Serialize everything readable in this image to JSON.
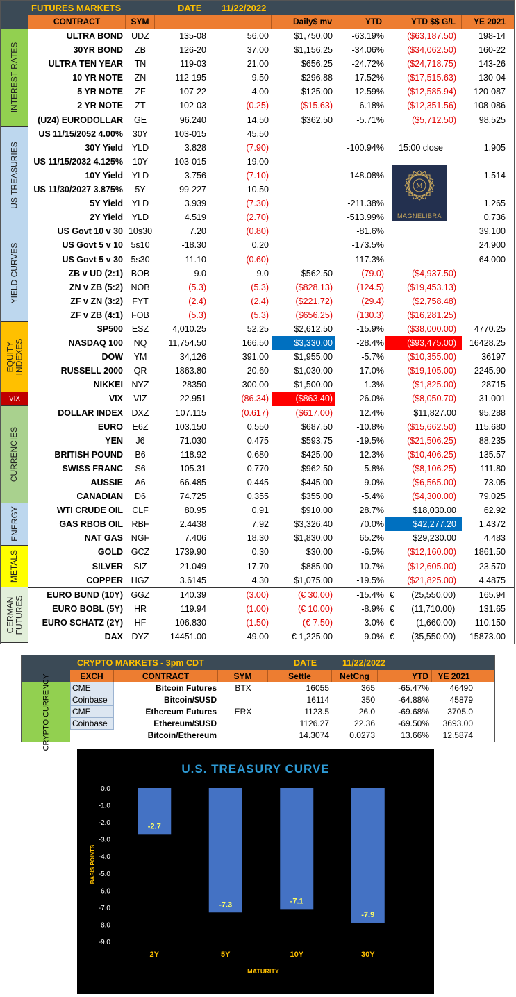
{
  "futures": {
    "title": "FUTURES MARKETS",
    "date_label": "DATE",
    "date": "11/22/2022",
    "columns": [
      "CONTRACT",
      "SYM",
      "",
      "",
      "Daily$ mv",
      "YTD",
      "YTD $$ G/L",
      "YE 2021"
    ],
    "sections": [
      {
        "label": "INTEREST RATES",
        "color": "#92d050",
        "rows": 7
      },
      {
        "label": "US TREASURIES",
        "color": "#bdd7ee",
        "rows": 7
      },
      {
        "label": "YIELD CURVES",
        "color": "#bdd7ee",
        "rows": 7
      },
      {
        "label": "EQUITY INDEXES",
        "color": "#ffc000",
        "rows": 5
      },
      {
        "label": "VIX",
        "color": "#c00000",
        "rows": 1
      },
      {
        "label": "CURRENCIES",
        "color": "#a9d18e",
        "rows": 7
      },
      {
        "label": "ENERGY",
        "color": "#bdd7ee",
        "rows": 3
      },
      {
        "label": "METALS",
        "color": "#ffff00",
        "rows": 3
      },
      {
        "label": "GERMAN FUTURES",
        "color": "#e2efda",
        "rows": 4
      }
    ],
    "rows": [
      {
        "contract": "ULTRA BOND",
        "sym": "UDZ",
        "price": "135-08",
        "net": "56.00",
        "mv": "$1,750.00",
        "ytd": "-63.19%",
        "ytdgl": "($63,187.50)",
        "ye": "198-14"
      },
      {
        "contract": "30YR BOND",
        "sym": "ZB",
        "price": "126-20",
        "net": "37.00",
        "mv": "$1,156.25",
        "ytd": "-34.06%",
        "ytdgl": "($34,062.50)",
        "ye": "160-22"
      },
      {
        "contract": "ULTRA TEN YEAR",
        "sym": "TN",
        "price": "119-03",
        "net": "21.00",
        "mv": "$656.25",
        "ytd": "-24.72%",
        "ytdgl": "($24,718.75)",
        "ye": "143-26"
      },
      {
        "contract": "10 YR NOTE",
        "sym": "ZN",
        "price": "112-195",
        "net": "9.50",
        "mv": "$296.88",
        "ytd": "-17.52%",
        "ytdgl": "($17,515.63)",
        "ye": "130-04"
      },
      {
        "contract": "5 YR NOTE",
        "sym": "ZF",
        "price": "107-22",
        "net": "4.00",
        "mv": "$125.00",
        "ytd": "-12.59%",
        "ytdgl": "($12,585.94)",
        "ye": "120-087"
      },
      {
        "contract": "2 YR NOTE",
        "sym": "ZT",
        "price": "102-03",
        "net": "(0.25)",
        "mv": "($15.63)",
        "ytd": "-6.18%",
        "ytdgl": "($12,351.56)",
        "ye": "108-086"
      },
      {
        "contract": "(U24) EURODOLLAR",
        "sym": "GE",
        "price": "96.240",
        "net": "14.50",
        "mv": "$362.50",
        "ytd": "-5.71%",
        "ytdgl": "($5,712.50)",
        "ye": "98.525"
      },
      {
        "contract": "US 11/15/2052 4.00%",
        "sym": "30Y",
        "price": "103-015",
        "net": "45.50",
        "mv": "",
        "ytd": "",
        "ytdgl": "",
        "ye": ""
      },
      {
        "contract": "30Y Yield",
        "sym": "YLD",
        "price": "3.828",
        "net": "(7.90)",
        "mv": "",
        "ytd": "-100.94%",
        "ytdgl": "15:00 close",
        "ye": "1.905"
      },
      {
        "contract": "US 11/15/2032 4.125%",
        "sym": "10Y",
        "price": "103-015",
        "net": "19.00",
        "mv": "",
        "ytd": "",
        "ytdgl": "",
        "ye": ""
      },
      {
        "contract": "10Y Yield",
        "sym": "YLD",
        "price": "3.756",
        "net": "(7.10)",
        "mv": "",
        "ytd": "-148.08%",
        "ytdgl": "",
        "ye": "1.514"
      },
      {
        "contract": "US 11/30/2027 3.875%",
        "sym": "5Y",
        "price": "99-227",
        "net": "10.50",
        "mv": "",
        "ytd": "",
        "ytdgl": "",
        "ye": ""
      },
      {
        "contract": "5Y Yield",
        "sym": "YLD",
        "price": "3.939",
        "net": "(7.30)",
        "mv": "",
        "ytd": "-211.38%",
        "ytdgl": "",
        "ye": "1.265"
      },
      {
        "contract": "2Y Yield",
        "sym": "YLD",
        "price": "4.519",
        "net": "(2.70)",
        "mv": "",
        "ytd": "-513.99%",
        "ytdgl": "",
        "ye": "0.736"
      },
      {
        "contract": "US Govt 10 v 30",
        "sym": "10s30",
        "price": "7.20",
        "net": "(0.80)",
        "mv": "",
        "ytd": "-81.6%",
        "ytdgl": "",
        "ye": "39.100"
      },
      {
        "contract": "US Govt 5 v 10",
        "sym": "5s10",
        "price": "-18.30",
        "net": "0.20",
        "mv": "",
        "ytd": "-173.5%",
        "ytdgl": "",
        "ye": "24.900"
      },
      {
        "contract": "US Govt 5 v 30",
        "sym": "5s30",
        "price": "-11.10",
        "net": "(0.60)",
        "mv": "",
        "ytd": "-117.3%",
        "ytdgl": "",
        "ye": "64.000"
      },
      {
        "contract": "ZB v UD (2:1)",
        "sym": "BOB",
        "price": "9.0",
        "net": "9.0",
        "mv": "$562.50",
        "ytd": "(79.0)",
        "ytdgl": "($4,937.50)",
        "ye": ""
      },
      {
        "contract": "ZN v ZB (5:2)",
        "sym": "NOB",
        "price": "(5.3)",
        "net": "(5.3)",
        "mv": "($828.13)",
        "ytd": "(124.5)",
        "ytdgl": "($19,453.13)",
        "ye": ""
      },
      {
        "contract": "ZF v ZN (3:2)",
        "sym": "FYT",
        "price": "(2.4)",
        "net": "(2.4)",
        "mv": "($221.72)",
        "ytd": "(29.4)",
        "ytdgl": "($2,758.48)",
        "ye": ""
      },
      {
        "contract": "ZF v ZB (4:1)",
        "sym": "FOB",
        "price": "(5.3)",
        "net": "(5.3)",
        "mv": "($656.25)",
        "ytd": "(130.3)",
        "ytdgl": "($16,281.25)",
        "ye": ""
      },
      {
        "contract": "SP500",
        "sym": "ESZ",
        "price": "4,010.25",
        "net": "52.25",
        "mv": "$2,612.50",
        "ytd": "-15.9%",
        "ytdgl": "($38,000.00)",
        "ye": "4770.25"
      },
      {
        "contract": "NASDAQ 100",
        "sym": "NQ",
        "price": "11,754.50",
        "net": "166.50",
        "mv": "$3,330.00",
        "ytd": "-28.4%",
        "ytdgl": "($93,475.00)",
        "ye": "16428.25"
      },
      {
        "contract": "DOW",
        "sym": "YM",
        "price": "34,126",
        "net": "391.00",
        "mv": "$1,955.00",
        "ytd": "-5.7%",
        "ytdgl": "($10,355.00)",
        "ye": "36197"
      },
      {
        "contract": "RUSSELL 2000",
        "sym": "QR",
        "price": "1863.80",
        "net": "20.60",
        "mv": "$1,030.00",
        "ytd": "-17.0%",
        "ytdgl": "($19,105.00)",
        "ye": "2245.90"
      },
      {
        "contract": "NIKKEI",
        "sym": "NYZ",
        "price": "28350",
        "net": "300.00",
        "mv": "$1,500.00",
        "ytd": "-1.3%",
        "ytdgl": "($1,825.00)",
        "ye": "28715"
      },
      {
        "contract": "VIX",
        "sym": "VIZ",
        "price": "22.951",
        "net": "(86.34)",
        "mv": "($863.40)",
        "ytd": "-26.0%",
        "ytdgl": "($8,050.70)",
        "ye": "31.001"
      },
      {
        "contract": "DOLLAR INDEX",
        "sym": "DXZ",
        "price": "107.115",
        "net": "(0.617)",
        "mv": "($617.00)",
        "ytd": "12.4%",
        "ytdgl": "$11,827.00",
        "ye": "95.288"
      },
      {
        "contract": "EURO",
        "sym": "E6Z",
        "price": "103.150",
        "net": "0.550",
        "mv": "$687.50",
        "ytd": "-10.8%",
        "ytdgl": "($15,662.50)",
        "ye": "115.680"
      },
      {
        "contract": "YEN",
        "sym": "J6",
        "price": "71.030",
        "net": "0.475",
        "mv": "$593.75",
        "ytd": "-19.5%",
        "ytdgl": "($21,506.25)",
        "ye": "88.235"
      },
      {
        "contract": "BRITISH POUND",
        "sym": "B6",
        "price": "118.92",
        "net": "0.680",
        "mv": "$425.00",
        "ytd": "-12.3%",
        "ytdgl": "($10,406.25)",
        "ye": "135.57"
      },
      {
        "contract": "SWISS FRANC",
        "sym": "S6",
        "price": "105.31",
        "net": "0.770",
        "mv": "$962.50",
        "ytd": "-5.8%",
        "ytdgl": "($8,106.25)",
        "ye": "111.80"
      },
      {
        "contract": "AUSSIE",
        "sym": "A6",
        "price": "66.485",
        "net": "0.445",
        "mv": "$445.00",
        "ytd": "-9.0%",
        "ytdgl": "($6,565.00)",
        "ye": "73.05"
      },
      {
        "contract": "CANADIAN",
        "sym": "D6",
        "price": "74.725",
        "net": "0.355",
        "mv": "$355.00",
        "ytd": "-5.4%",
        "ytdgl": "($4,300.00)",
        "ye": "79.025"
      },
      {
        "contract": "WTI CRUDE OIL",
        "sym": "CLF",
        "price": "80.95",
        "net": "0.91",
        "mv": "$910.00",
        "ytd": "28.7%",
        "ytdgl": "$18,030.00",
        "ye": "62.92"
      },
      {
        "contract": "GAS RBOB OIL",
        "sym": "RBF",
        "price": "2.4438",
        "net": "7.92",
        "mv": "$3,326.40",
        "ytd": "70.0%",
        "ytdgl": "$42,277.20",
        "ye": "1.4372"
      },
      {
        "contract": "NAT GAS",
        "sym": "NGF",
        "price": "7.406",
        "net": "18.30",
        "mv": "$1,830.00",
        "ytd": "65.2%",
        "ytdgl": "$29,230.00",
        "ye": "4.483"
      },
      {
        "contract": "GOLD",
        "sym": "GCZ",
        "price": "1739.90",
        "net": "0.30",
        "mv": "$30.00",
        "ytd": "-6.5%",
        "ytdgl": "($12,160.00)",
        "ye": "1861.50"
      },
      {
        "contract": "SILVER",
        "sym": "SIZ",
        "price": "21.049",
        "net": "17.70",
        "mv": "$885.00",
        "ytd": "-10.7%",
        "ytdgl": "($12,605.00)",
        "ye": "23.570"
      },
      {
        "contract": "COPPER",
        "sym": "HGZ",
        "price": "3.6145",
        "net": "4.30",
        "mv": "$1,075.00",
        "ytd": "-19.5%",
        "ytdgl": "($21,825.00)",
        "ye": "4.4875"
      },
      {
        "contract": "EURO BUND (10Y)",
        "sym": "GGZ",
        "price": "140.39",
        "net": "(3.00)",
        "mv": "(€ 30.00)",
        "ytd": "-15.4%",
        "ytdgl": "€       (25,550.00)",
        "ye": "165.94"
      },
      {
        "contract": "EURO BOBL (5Y)",
        "sym": "HR",
        "price": "119.94",
        "net": "(1.00)",
        "mv": "(€ 10.00)",
        "ytd": "-8.9%",
        "ytdgl": "€       (11,710.00)",
        "ye": "131.65"
      },
      {
        "contract": "EURO SCHATZ (2Y)",
        "sym": "HF",
        "price": "106.830",
        "net": "(1.50)",
        "mv": "(€ 7.50)",
        "ytd": "-3.0%",
        "ytdgl": "€         (1,660.00)",
        "ye": "110.150"
      },
      {
        "contract": "DAX",
        "sym": "DYZ",
        "price": "14451.00",
        "net": "49.00",
        "mv": "€ 1,225.00",
        "ytd": "-9.0%",
        "ytdgl": "€       (35,550.00)",
        "ye": "15873.00"
      }
    ],
    "logo_text": "MAGNELIBRA"
  },
  "crypto": {
    "title": "CRYPTO MARKETS - 3pm CDT",
    "date_label": "DATE",
    "date": "11/22/2022",
    "side_label": "CRYPTO CURRENCY",
    "columns": [
      "EXCH",
      "CONTRACT",
      "SYM",
      "Settle",
      "NetCng",
      "YTD",
      "YE 2021"
    ],
    "rows": [
      {
        "exch": "CME",
        "contract": "Bitcoin Futures",
        "sym": "BTX",
        "settle": "16055",
        "net": "365",
        "ytd": "-65.47%",
        "ye": "46490"
      },
      {
        "exch": "Coinbase",
        "contract": "Bitcoin/$USD",
        "sym": "",
        "settle": "16114",
        "net": "350",
        "ytd": "-64.88%",
        "ye": "45879"
      },
      {
        "exch": "CME",
        "contract": "Ethereum Futures",
        "sym": "ERX",
        "settle": "1123.5",
        "net": "26.0",
        "ytd": "-69.68%",
        "ye": "3705.0"
      },
      {
        "exch": "Coinbase",
        "contract": "Ethereum/$USD",
        "sym": "",
        "settle": "1126.27",
        "net": "22.36",
        "ytd": "-69.50%",
        "ye": "3693.00"
      },
      {
        "exch": "",
        "contract": "Bitcoin/Ethereum",
        "sym": "",
        "settle": "14.3074",
        "net": "0.0273",
        "ytd": "13.66%",
        "ye": "12.5874"
      }
    ]
  },
  "chart_data": {
    "type": "bar",
    "title": "U.S. TREASURY CURVE",
    "xlabel": "MATURITY",
    "ylabel": "BASIS POINTS",
    "categories": [
      "2Y",
      "5Y",
      "10Y",
      "30Y"
    ],
    "values": [
      -2.7,
      -7.3,
      -7.1,
      -7.9
    ],
    "data_labels": [
      "-2.7",
      "-7.3",
      "-7.1",
      "-7.9"
    ],
    "ylim": [
      -9.0,
      0.0
    ],
    "yticks": [
      "0.0",
      "-1.0",
      "-2.0",
      "-3.0",
      "-4.0",
      "-5.0",
      "-6.0",
      "-7.0",
      "-8.0",
      "-9.0"
    ],
    "grid": false,
    "background": "#000000",
    "bar_color": "#4472c4",
    "title_color": "#2e9bd6",
    "label_color": "#ffc000"
  }
}
